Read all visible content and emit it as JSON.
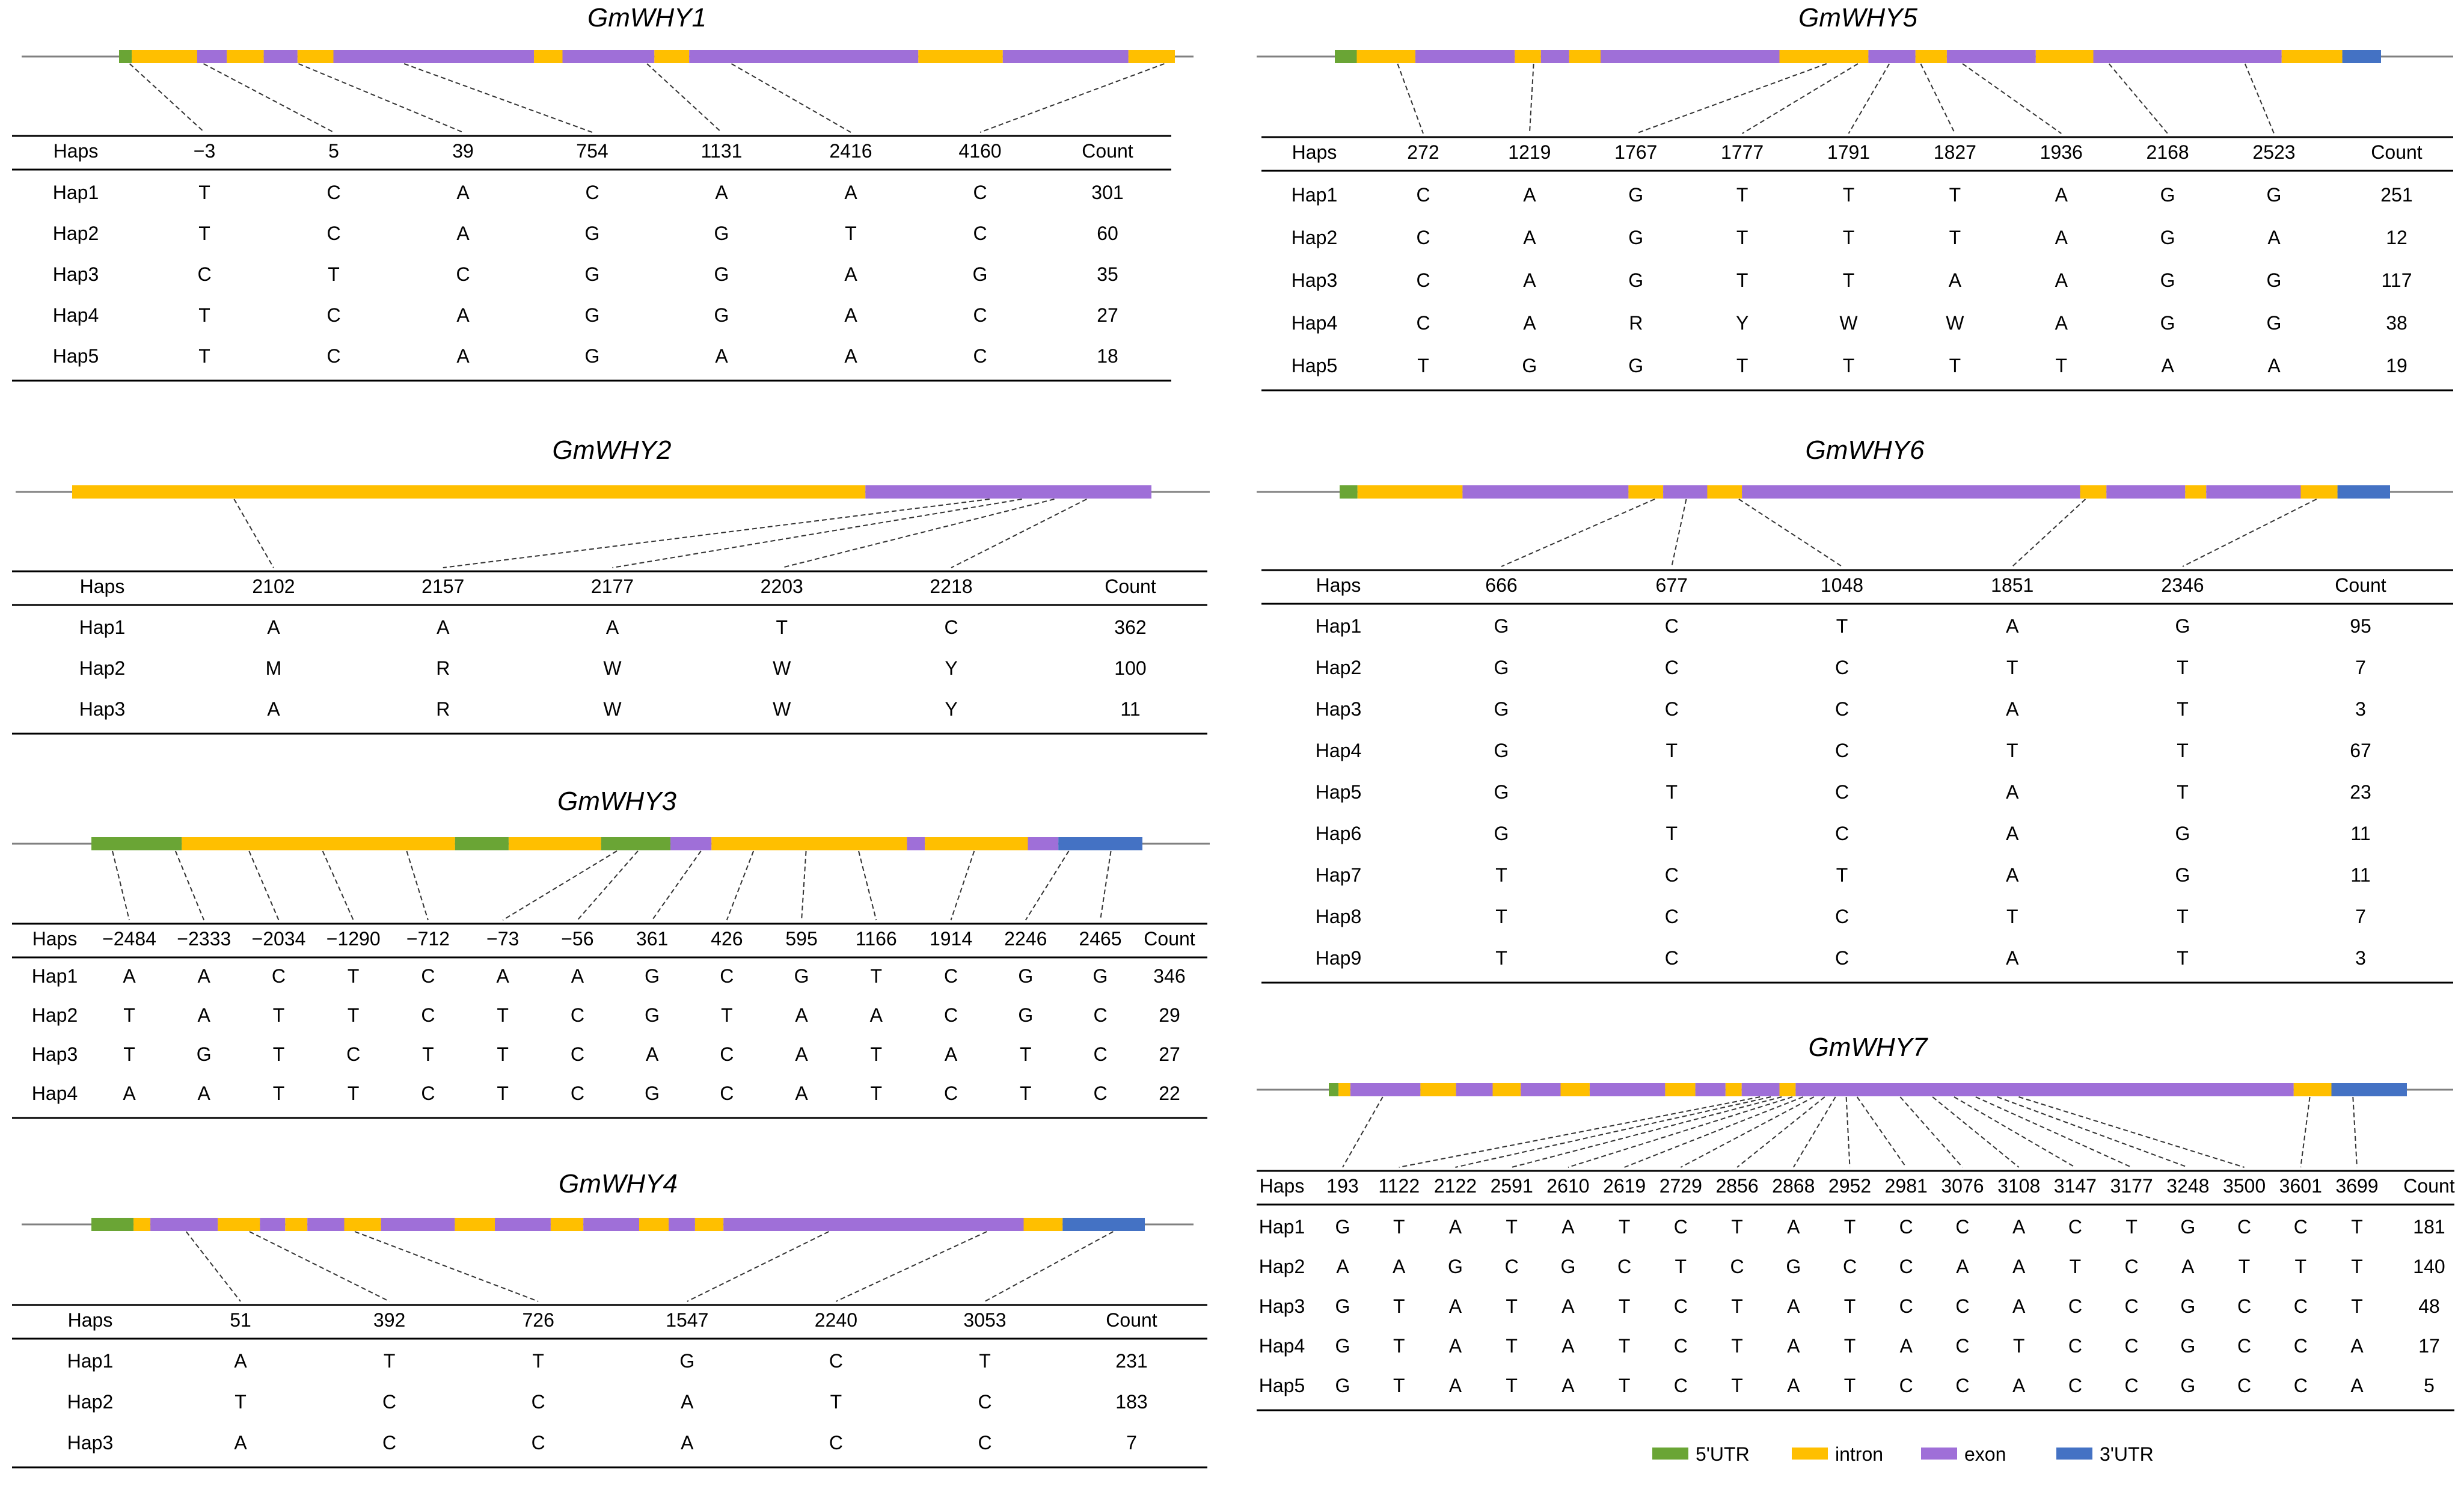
{
  "colors": {
    "utr5": "#6aa535",
    "intron": "#ffbf00",
    "exon": "#9f6fd8",
    "utr3": "#4472c4",
    "backbone": "#808080",
    "rule": "#000000"
  },
  "legend": [
    {
      "key": "utr5",
      "label": "5'UTR"
    },
    {
      "key": "intron",
      "label": "intron"
    },
    {
      "key": "exon",
      "label": "exon"
    },
    {
      "key": "utr3",
      "label": "3'UTR"
    }
  ],
  "genes": [
    {
      "title": "GmWHY1",
      "header": "Haps",
      "count_header": "Count",
      "positions": [
        "−3",
        "5",
        "39",
        "754",
        "1131",
        "2416",
        "4160"
      ],
      "segments": [
        [
          "utr5",
          0,
          0.012
        ],
        [
          "intron",
          0.012,
          0.074
        ],
        [
          "exon",
          0.074,
          0.102
        ],
        [
          "intron",
          0.102,
          0.137
        ],
        [
          "exon",
          0.137,
          0.169
        ],
        [
          "intron",
          0.169,
          0.203
        ],
        [
          "exon",
          0.203,
          0.393
        ],
        [
          "intron",
          0.393,
          0.42
        ],
        [
          "exon",
          0.42,
          0.507
        ],
        [
          "intron",
          0.507,
          0.54
        ],
        [
          "exon",
          0.54,
          0.757
        ],
        [
          "intron",
          0.757,
          0.837
        ],
        [
          "exon",
          0.837,
          0.956
        ],
        [
          "intron",
          0.956,
          1.0
        ]
      ],
      "anchors": [
        0.01,
        0.08,
        0.17,
        0.27,
        0.5,
        0.58,
        0.99
      ],
      "haps": [
        {
          "name": "Hap1",
          "alleles": [
            "T",
            "C",
            "A",
            "C",
            "A",
            "A",
            "C"
          ],
          "count": "301"
        },
        {
          "name": "Hap2",
          "alleles": [
            "T",
            "C",
            "A",
            "G",
            "G",
            "T",
            "C"
          ],
          "count": "60"
        },
        {
          "name": "Hap3",
          "alleles": [
            "C",
            "T",
            "C",
            "G",
            "G",
            "A",
            "G"
          ],
          "count": "35"
        },
        {
          "name": "Hap4",
          "alleles": [
            "T",
            "C",
            "A",
            "G",
            "G",
            "A",
            "C"
          ],
          "count": "27"
        },
        {
          "name": "Hap5",
          "alleles": [
            "T",
            "C",
            "A",
            "G",
            "A",
            "A",
            "C"
          ],
          "count": "18"
        }
      ]
    },
    {
      "title": "GmWHY2",
      "header": "Haps",
      "count_header": "Count",
      "positions": [
        "2102",
        "2157",
        "2177",
        "2203",
        "2218"
      ],
      "segments": [
        [
          "intron",
          0,
          0.735
        ],
        [
          "exon",
          0.735,
          1.0
        ]
      ],
      "anchors": [
        0.15,
        0.85,
        0.88,
        0.91,
        0.94
      ],
      "haps": [
        {
          "name": "Hap1",
          "alleles": [
            "A",
            "A",
            "A",
            "T",
            "C"
          ],
          "count": "362"
        },
        {
          "name": "Hap2",
          "alleles": [
            "M",
            "R",
            "W",
            "W",
            "Y"
          ],
          "count": "100"
        },
        {
          "name": "Hap3",
          "alleles": [
            "A",
            "R",
            "W",
            "W",
            "Y"
          ],
          "count": "11"
        }
      ]
    },
    {
      "title": "GmWHY3",
      "header": "Haps",
      "count_header": "Count",
      "positions": [
        "−2484",
        "−2333",
        "−2034",
        "−1290",
        "−712",
        "−73",
        "−56",
        "361",
        "426",
        "595",
        "1166",
        "1914",
        "2246",
        "2465"
      ],
      "segments": [
        [
          "utr5",
          0,
          0.086
        ],
        [
          "intron",
          0.086,
          0.346
        ],
        [
          "utr5",
          0.346,
          0.397
        ],
        [
          "intron",
          0.397,
          0.485
        ],
        [
          "utr5",
          0.485,
          0.551
        ],
        [
          "exon",
          0.551,
          0.59
        ],
        [
          "intron",
          0.59,
          0.776
        ],
        [
          "exon",
          0.776,
          0.793
        ],
        [
          "intron",
          0.793,
          0.891
        ],
        [
          "exon",
          0.891,
          0.92
        ],
        [
          "utr3",
          0.92,
          1.0
        ]
      ],
      "anchors": [
        0.02,
        0.08,
        0.15,
        0.22,
        0.3,
        0.5,
        0.52,
        0.58,
        0.63,
        0.68,
        0.73,
        0.84,
        0.93,
        0.97
      ],
      "haps": [
        {
          "name": "Hap1",
          "alleles": [
            "A",
            "A",
            "C",
            "T",
            "C",
            "A",
            "A",
            "G",
            "C",
            "G",
            "T",
            "C",
            "G",
            "G"
          ],
          "count": "346"
        },
        {
          "name": "Hap2",
          "alleles": [
            "T",
            "A",
            "T",
            "T",
            "C",
            "T",
            "C",
            "G",
            "T",
            "A",
            "A",
            "C",
            "G",
            "C"
          ],
          "count": "29"
        },
        {
          "name": "Hap3",
          "alleles": [
            "T",
            "G",
            "T",
            "C",
            "T",
            "T",
            "C",
            "A",
            "C",
            "A",
            "T",
            "A",
            "T",
            "C"
          ],
          "count": "27"
        },
        {
          "name": "Hap4",
          "alleles": [
            "A",
            "A",
            "T",
            "T",
            "C",
            "T",
            "C",
            "G",
            "C",
            "A",
            "T",
            "C",
            "T",
            "C"
          ],
          "count": "22"
        }
      ]
    },
    {
      "title": "GmWHY4",
      "header": "Haps",
      "count_header": "Count",
      "positions": [
        "51",
        "392",
        "726",
        "1547",
        "2240",
        "3053"
      ],
      "segments": [
        [
          "utr5",
          0,
          0.04
        ],
        [
          "intron",
          0.04,
          0.056
        ],
        [
          "exon",
          0.056,
          0.12
        ],
        [
          "intron",
          0.12,
          0.16
        ],
        [
          "exon",
          0.16,
          0.184
        ],
        [
          "intron",
          0.184,
          0.205
        ],
        [
          "exon",
          0.205,
          0.24
        ],
        [
          "intron",
          0.24,
          0.275
        ],
        [
          "exon",
          0.275,
          0.345
        ],
        [
          "intron",
          0.345,
          0.383
        ],
        [
          "exon",
          0.383,
          0.436
        ],
        [
          "intron",
          0.436,
          0.467
        ],
        [
          "exon",
          0.467,
          0.52
        ],
        [
          "intron",
          0.52,
          0.548
        ],
        [
          "exon",
          0.548,
          0.573
        ],
        [
          "intron",
          0.573,
          0.6
        ],
        [
          "exon",
          0.6,
          0.885
        ],
        [
          "intron",
          0.885,
          0.922
        ],
        [
          "utr3",
          0.922,
          1.0
        ]
      ],
      "anchors": [
        0.09,
        0.15,
        0.25,
        0.7,
        0.85,
        0.97
      ],
      "haps": [
        {
          "name": "Hap1",
          "alleles": [
            "A",
            "T",
            "T",
            "G",
            "C",
            "T"
          ],
          "count": "231"
        },
        {
          "name": "Hap2",
          "alleles": [
            "T",
            "C",
            "C",
            "A",
            "T",
            "C"
          ],
          "count": "183"
        },
        {
          "name": "Hap3",
          "alleles": [
            "A",
            "C",
            "C",
            "A",
            "C",
            "C"
          ],
          "count": "7"
        }
      ]
    },
    {
      "title": "GmWHY5",
      "header": "Haps",
      "count_header": "Count",
      "positions": [
        "272",
        "1219",
        "1767",
        "1777",
        "1791",
        "1827",
        "1936",
        "2168",
        "2523"
      ],
      "segments": [
        [
          "utr5",
          0,
          0.021
        ],
        [
          "intron",
          0.021,
          0.077
        ],
        [
          "exon",
          0.077,
          0.172
        ],
        [
          "intron",
          0.172,
          0.197
        ],
        [
          "exon",
          0.197,
          0.224
        ],
        [
          "intron",
          0.224,
          0.254
        ],
        [
          "exon",
          0.254,
          0.425
        ],
        [
          "intron",
          0.425,
          0.51
        ],
        [
          "exon",
          0.51,
          0.555
        ],
        [
          "intron",
          0.555,
          0.585
        ],
        [
          "exon",
          0.585,
          0.67
        ],
        [
          "intron",
          0.67,
          0.725
        ],
        [
          "exon",
          0.725,
          0.905
        ],
        [
          "intron",
          0.905,
          0.963
        ],
        [
          "utr3",
          0.963,
          1.0
        ]
      ],
      "anchors": [
        0.06,
        0.19,
        0.47,
        0.5,
        0.53,
        0.56,
        0.6,
        0.74,
        0.87
      ],
      "haps": [
        {
          "name": "Hap1",
          "alleles": [
            "C",
            "A",
            "G",
            "T",
            "T",
            "T",
            "A",
            "G",
            "G"
          ],
          "count": "251"
        },
        {
          "name": "Hap2",
          "alleles": [
            "C",
            "A",
            "G",
            "T",
            "T",
            "T",
            "A",
            "G",
            "A"
          ],
          "count": "12"
        },
        {
          "name": "Hap3",
          "alleles": [
            "C",
            "A",
            "G",
            "T",
            "T",
            "A",
            "A",
            "G",
            "G"
          ],
          "count": "117"
        },
        {
          "name": "Hap4",
          "alleles": [
            "C",
            "A",
            "R",
            "Y",
            "W",
            "W",
            "A",
            "G",
            "G"
          ],
          "count": "38"
        },
        {
          "name": "Hap5",
          "alleles": [
            "T",
            "G",
            "G",
            "T",
            "T",
            "T",
            "T",
            "A",
            "A"
          ],
          "count": "19"
        }
      ]
    },
    {
      "title": "GmWHY6",
      "header": "Haps",
      "count_header": "Count",
      "positions": [
        "666",
        "677",
        "1048",
        "1851",
        "2346"
      ],
      "segments": [
        [
          "utr5",
          0,
          0.017
        ],
        [
          "intron",
          0.017,
          0.117
        ],
        [
          "exon",
          0.117,
          0.275
        ],
        [
          "intron",
          0.275,
          0.308
        ],
        [
          "exon",
          0.308,
          0.35
        ],
        [
          "intron",
          0.35,
          0.383
        ],
        [
          "exon",
          0.383,
          0.705
        ],
        [
          "intron",
          0.705,
          0.73
        ],
        [
          "exon",
          0.73,
          0.805
        ],
        [
          "intron",
          0.805,
          0.825
        ],
        [
          "exon",
          0.825,
          0.915
        ],
        [
          "intron",
          0.915,
          0.95
        ],
        [
          "utr3",
          0.95,
          1.0
        ]
      ],
      "anchors": [
        0.3,
        0.33,
        0.38,
        0.71,
        0.93
      ],
      "haps": [
        {
          "name": "Hap1",
          "alleles": [
            "G",
            "C",
            "T",
            "A",
            "G"
          ],
          "count": "95"
        },
        {
          "name": "Hap2",
          "alleles": [
            "G",
            "C",
            "C",
            "T",
            "T"
          ],
          "count": "7"
        },
        {
          "name": "Hap3",
          "alleles": [
            "G",
            "C",
            "C",
            "A",
            "T"
          ],
          "count": "3"
        },
        {
          "name": "Hap4",
          "alleles": [
            "G",
            "T",
            "C",
            "T",
            "T"
          ],
          "count": "67"
        },
        {
          "name": "Hap5",
          "alleles": [
            "G",
            "T",
            "C",
            "A",
            "T"
          ],
          "count": "23"
        },
        {
          "name": "Hap6",
          "alleles": [
            "G",
            "T",
            "C",
            "A",
            "G"
          ],
          "count": "11"
        },
        {
          "name": "Hap7",
          "alleles": [
            "T",
            "C",
            "T",
            "A",
            "G"
          ],
          "count": "11"
        },
        {
          "name": "Hap8",
          "alleles": [
            "T",
            "C",
            "C",
            "T",
            "T"
          ],
          "count": "7"
        },
        {
          "name": "Hap9",
          "alleles": [
            "T",
            "C",
            "C",
            "A",
            "T"
          ],
          "count": "3"
        }
      ]
    },
    {
      "title": "GmWHY7",
      "header": "Haps",
      "count_header": "Count",
      "positions": [
        "193",
        "1122",
        "2122",
        "2591",
        "2610",
        "2619",
        "2729",
        "2856",
        "2868",
        "2952",
        "2981",
        "3076",
        "3108",
        "3147",
        "3177",
        "3248",
        "3500",
        "3601",
        "3699"
      ],
      "segments": [
        [
          "utr5",
          0,
          0.009
        ],
        [
          "intron",
          0.009,
          0.02
        ],
        [
          "exon",
          0.02,
          0.085
        ],
        [
          "intron",
          0.085,
          0.118
        ],
        [
          "exon",
          0.118,
          0.152
        ],
        [
          "intron",
          0.152,
          0.178
        ],
        [
          "exon",
          0.178,
          0.215
        ],
        [
          "intron",
          0.215,
          0.242
        ],
        [
          "exon",
          0.242,
          0.312
        ],
        [
          "intron",
          0.312,
          0.34
        ],
        [
          "exon",
          0.34,
          0.368
        ],
        [
          "intron",
          0.368,
          0.383
        ],
        [
          "exon",
          0.383,
          0.418
        ],
        [
          "intron",
          0.418,
          0.433
        ],
        [
          "exon",
          0.433,
          0.895
        ],
        [
          "intron",
          0.895,
          0.93
        ],
        [
          "utr3",
          0.93,
          1.0
        ]
      ],
      "anchors": [
        0.05,
        0.4,
        0.41,
        0.42,
        0.43,
        0.44,
        0.45,
        0.46,
        0.47,
        0.48,
        0.49,
        0.53,
        0.56,
        0.58,
        0.6,
        0.62,
        0.64,
        0.91,
        0.95
      ],
      "haps": [
        {
          "name": "Hap1",
          "alleles": [
            "G",
            "T",
            "A",
            "T",
            "A",
            "T",
            "C",
            "T",
            "A",
            "T",
            "C",
            "C",
            "A",
            "C",
            "T",
            "G",
            "C",
            "C",
            "T"
          ],
          "count": "181"
        },
        {
          "name": "Hap2",
          "alleles": [
            "A",
            "A",
            "G",
            "C",
            "G",
            "C",
            "T",
            "C",
            "G",
            "C",
            "C",
            "A",
            "A",
            "T",
            "C",
            "A",
            "T",
            "T",
            "T"
          ],
          "count": "140"
        },
        {
          "name": "Hap3",
          "alleles": [
            "G",
            "T",
            "A",
            "T",
            "A",
            "T",
            "C",
            "T",
            "A",
            "T",
            "C",
            "C",
            "A",
            "C",
            "C",
            "G",
            "C",
            "C",
            "T"
          ],
          "count": "48"
        },
        {
          "name": "Hap4",
          "alleles": [
            "G",
            "T",
            "A",
            "T",
            "A",
            "T",
            "C",
            "T",
            "A",
            "T",
            "A",
            "C",
            "T",
            "C",
            "C",
            "G",
            "C",
            "C",
            "A"
          ],
          "count": "17"
        },
        {
          "name": "Hap5",
          "alleles": [
            "G",
            "T",
            "A",
            "T",
            "A",
            "T",
            "C",
            "T",
            "A",
            "T",
            "C",
            "C",
            "A",
            "C",
            "C",
            "G",
            "C",
            "C",
            "A"
          ],
          "count": "5"
        }
      ]
    }
  ]
}
